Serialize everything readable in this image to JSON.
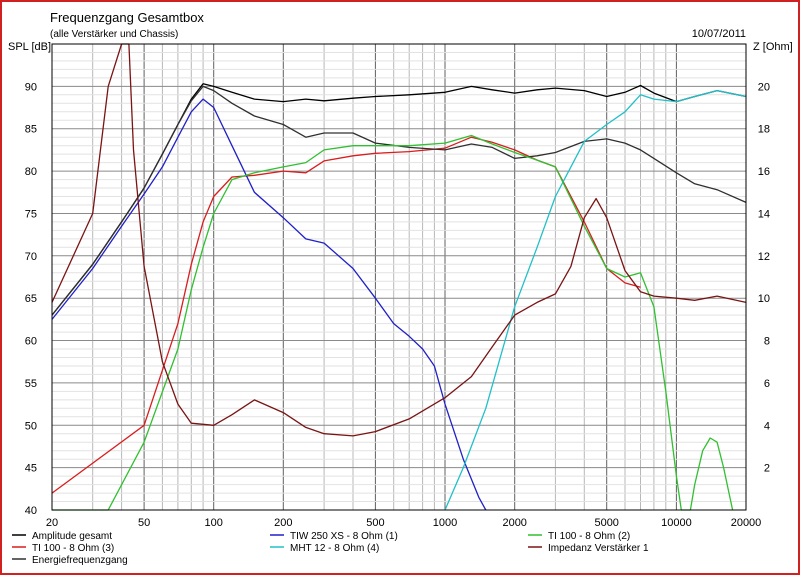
{
  "chart_data": {
    "type": "line",
    "title": "Frequenzgang Gesamtbox",
    "subtitle": "(alle Verstärker und Chassis)",
    "date": "10/07/2011",
    "ylabel": "SPL [dB]",
    "y2label": "Z [Ohm]",
    "x_scale": "log",
    "xlim": [
      20,
      20000
    ],
    "ylim": [
      40,
      95
    ],
    "y2lim": [
      0,
      22
    ],
    "grid": true,
    "x_ticks": [
      20,
      50,
      100,
      200,
      500,
      1000,
      2000,
      5000,
      10000,
      20000
    ],
    "x_tick_labels": [
      "20",
      "50",
      "100",
      "200",
      "500",
      "1000",
      "2000",
      "5000",
      "10000",
      "20000"
    ],
    "y_ticks": [
      40,
      45,
      50,
      55,
      60,
      65,
      70,
      75,
      80,
      85,
      90
    ],
    "y_tick_labels": [
      "40",
      "45",
      "50",
      "55",
      "60",
      "65",
      "70",
      "75",
      "80",
      "85",
      "90"
    ],
    "y2_ticks": [
      2,
      4,
      6,
      8,
      10,
      12,
      14,
      16,
      18,
      20
    ],
    "y2_tick_labels": [
      "2",
      "4",
      "6",
      "8",
      "10",
      "12",
      "14",
      "16",
      "18",
      "20"
    ],
    "legend_position": "bottom",
    "series": [
      {
        "name": "Amplitude gesamt",
        "color": "#000000",
        "axis": "left",
        "points": [
          [
            20,
            63
          ],
          [
            30,
            69
          ],
          [
            40,
            74
          ],
          [
            50,
            78
          ],
          [
            60,
            82
          ],
          [
            70,
            85.5
          ],
          [
            80,
            88.5
          ],
          [
            90,
            90.3
          ],
          [
            100,
            90
          ],
          [
            120,
            89.3
          ],
          [
            150,
            88.5
          ],
          [
            200,
            88.2
          ],
          [
            250,
            88.5
          ],
          [
            300,
            88.3
          ],
          [
            400,
            88.6
          ],
          [
            500,
            88.8
          ],
          [
            700,
            89
          ],
          [
            1000,
            89.3
          ],
          [
            1300,
            90
          ],
          [
            1600,
            89.6
          ],
          [
            2000,
            89.2
          ],
          [
            2500,
            89.6
          ],
          [
            3000,
            89.8
          ],
          [
            4000,
            89.5
          ],
          [
            5000,
            88.8
          ],
          [
            6000,
            89.3
          ],
          [
            7000,
            90.1
          ],
          [
            8000,
            89.2
          ],
          [
            10000,
            88.2
          ],
          [
            12000,
            88.8
          ],
          [
            15000,
            89.5
          ],
          [
            20000,
            88.8
          ]
        ]
      },
      {
        "name": "TI 100 - 8 Ohm (3)",
        "color": "#d81e1e",
        "axis": "left",
        "points": [
          [
            20,
            42
          ],
          [
            50,
            50
          ],
          [
            70,
            62
          ],
          [
            80,
            69
          ],
          [
            90,
            74
          ],
          [
            100,
            77
          ],
          [
            120,
            79.3
          ],
          [
            150,
            79.5
          ],
          [
            200,
            80
          ],
          [
            250,
            79.8
          ],
          [
            300,
            81.2
          ],
          [
            400,
            81.8
          ],
          [
            500,
            82.1
          ],
          [
            700,
            82.3
          ],
          [
            1000,
            82.7
          ],
          [
            1300,
            84
          ],
          [
            1600,
            83.4
          ],
          [
            2000,
            82.5
          ],
          [
            2500,
            81.3
          ],
          [
            3000,
            80.5
          ],
          [
            4000,
            74
          ],
          [
            5000,
            68.5
          ],
          [
            6000,
            66.8
          ],
          [
            7000,
            66.3
          ]
        ]
      },
      {
        "name": "Energiefrequenzgang",
        "color": "#303030",
        "axis": "left",
        "points": [
          [
            20,
            63
          ],
          [
            30,
            69
          ],
          [
            40,
            74
          ],
          [
            50,
            78
          ],
          [
            60,
            82
          ],
          [
            70,
            85.5
          ],
          [
            80,
            88.3
          ],
          [
            90,
            90
          ],
          [
            100,
            89.5
          ],
          [
            120,
            88
          ],
          [
            150,
            86.5
          ],
          [
            200,
            85.5
          ],
          [
            250,
            84
          ],
          [
            300,
            84.5
          ],
          [
            400,
            84.5
          ],
          [
            500,
            83.3
          ],
          [
            700,
            82.8
          ],
          [
            1000,
            82.5
          ],
          [
            1300,
            83.2
          ],
          [
            1600,
            82.8
          ],
          [
            2000,
            81.5
          ],
          [
            2500,
            81.8
          ],
          [
            3000,
            82.2
          ],
          [
            4000,
            83.5
          ],
          [
            5000,
            83.8
          ],
          [
            6000,
            83.3
          ],
          [
            7000,
            82.5
          ],
          [
            8000,
            81.5
          ],
          [
            10000,
            79.8
          ],
          [
            12000,
            78.5
          ],
          [
            15000,
            77.8
          ],
          [
            20000,
            76.3
          ]
        ]
      },
      {
        "name": "TIW 250 XS - 8 Ohm (1)",
        "color": "#2020c8",
        "axis": "left",
        "points": [
          [
            20,
            62.5
          ],
          [
            30,
            68.5
          ],
          [
            40,
            73.5
          ],
          [
            50,
            77.3
          ],
          [
            60,
            80.5
          ],
          [
            70,
            84
          ],
          [
            80,
            87
          ],
          [
            90,
            88.5
          ],
          [
            100,
            87.5
          ],
          [
            120,
            83
          ],
          [
            150,
            77.5
          ],
          [
            200,
            74.5
          ],
          [
            250,
            72
          ],
          [
            300,
            71.5
          ],
          [
            400,
            68.5
          ],
          [
            500,
            65
          ],
          [
            600,
            62
          ],
          [
            700,
            60.5
          ],
          [
            800,
            59
          ],
          [
            900,
            57
          ],
          [
            1000,
            52.5
          ],
          [
            1200,
            46
          ],
          [
            1400,
            41.5
          ],
          [
            1500,
            40
          ]
        ]
      },
      {
        "name": "MHT 12 - 8 Ohm (4)",
        "color": "#20c0c8",
        "axis": "left",
        "points": [
          [
            1000,
            40
          ],
          [
            1200,
            45
          ],
          [
            1500,
            52
          ],
          [
            2000,
            64
          ],
          [
            2500,
            71
          ],
          [
            3000,
            77
          ],
          [
            3500,
            80.5
          ],
          [
            4000,
            83.5
          ],
          [
            5000,
            85.5
          ],
          [
            6000,
            87
          ],
          [
            7000,
            89
          ],
          [
            8000,
            88.5
          ],
          [
            10000,
            88.2
          ],
          [
            12000,
            88.8
          ],
          [
            15000,
            89.5
          ],
          [
            20000,
            88.8
          ]
        ]
      },
      {
        "name": "TI 100 - 8 Ohm (2)",
        "color": "#30c030",
        "axis": "left",
        "points": [
          [
            20,
            40
          ],
          [
            35,
            40
          ],
          [
            50,
            48
          ],
          [
            70,
            59
          ],
          [
            80,
            66
          ],
          [
            90,
            71
          ],
          [
            100,
            75
          ],
          [
            120,
            79
          ],
          [
            150,
            79.8
          ],
          [
            200,
            80.5
          ],
          [
            250,
            81
          ],
          [
            300,
            82.5
          ],
          [
            400,
            83
          ],
          [
            500,
            83
          ],
          [
            700,
            83
          ],
          [
            1000,
            83.3
          ],
          [
            1300,
            84.2
          ],
          [
            1600,
            83.2
          ],
          [
            2000,
            82.2
          ],
          [
            2500,
            81.3
          ],
          [
            3000,
            80.5
          ],
          [
            4000,
            73.5
          ],
          [
            5000,
            68.5
          ],
          [
            6000,
            67.5
          ],
          [
            7000,
            68
          ],
          [
            8000,
            64
          ],
          [
            9000,
            54
          ],
          [
            10000,
            44
          ],
          [
            10500,
            40
          ],
          [
            11500,
            40
          ],
          [
            12000,
            43
          ],
          [
            13000,
            47
          ],
          [
            14000,
            48.5
          ],
          [
            15000,
            48
          ],
          [
            16000,
            45
          ],
          [
            17500,
            40
          ]
        ]
      },
      {
        "name": "Impedanz Verstärker 1",
        "color": "#7a1414",
        "axis": "right",
        "points": [
          [
            20,
            9.8
          ],
          [
            30,
            14
          ],
          [
            35,
            20
          ],
          [
            40,
            22
          ],
          [
            43,
            22
          ],
          [
            45,
            17
          ],
          [
            50,
            11.5
          ],
          [
            60,
            7
          ],
          [
            70,
            5
          ],
          [
            80,
            4.1
          ],
          [
            100,
            4
          ],
          [
            120,
            4.5
          ],
          [
            150,
            5.2
          ],
          [
            200,
            4.6
          ],
          [
            250,
            3.9
          ],
          [
            300,
            3.6
          ],
          [
            400,
            3.5
          ],
          [
            500,
            3.7
          ],
          [
            700,
            4.3
          ],
          [
            1000,
            5.3
          ],
          [
            1300,
            6.3
          ],
          [
            1600,
            7.7
          ],
          [
            2000,
            9.2
          ],
          [
            2500,
            9.8
          ],
          [
            3000,
            10.2
          ],
          [
            3500,
            11.5
          ],
          [
            4000,
            13.8
          ],
          [
            4500,
            14.7
          ],
          [
            5000,
            13.8
          ],
          [
            6000,
            11.3
          ],
          [
            7000,
            10.3
          ],
          [
            8000,
            10.1
          ],
          [
            10000,
            10
          ],
          [
            12000,
            9.9
          ],
          [
            15000,
            10.1
          ],
          [
            20000,
            9.8
          ]
        ]
      }
    ]
  }
}
